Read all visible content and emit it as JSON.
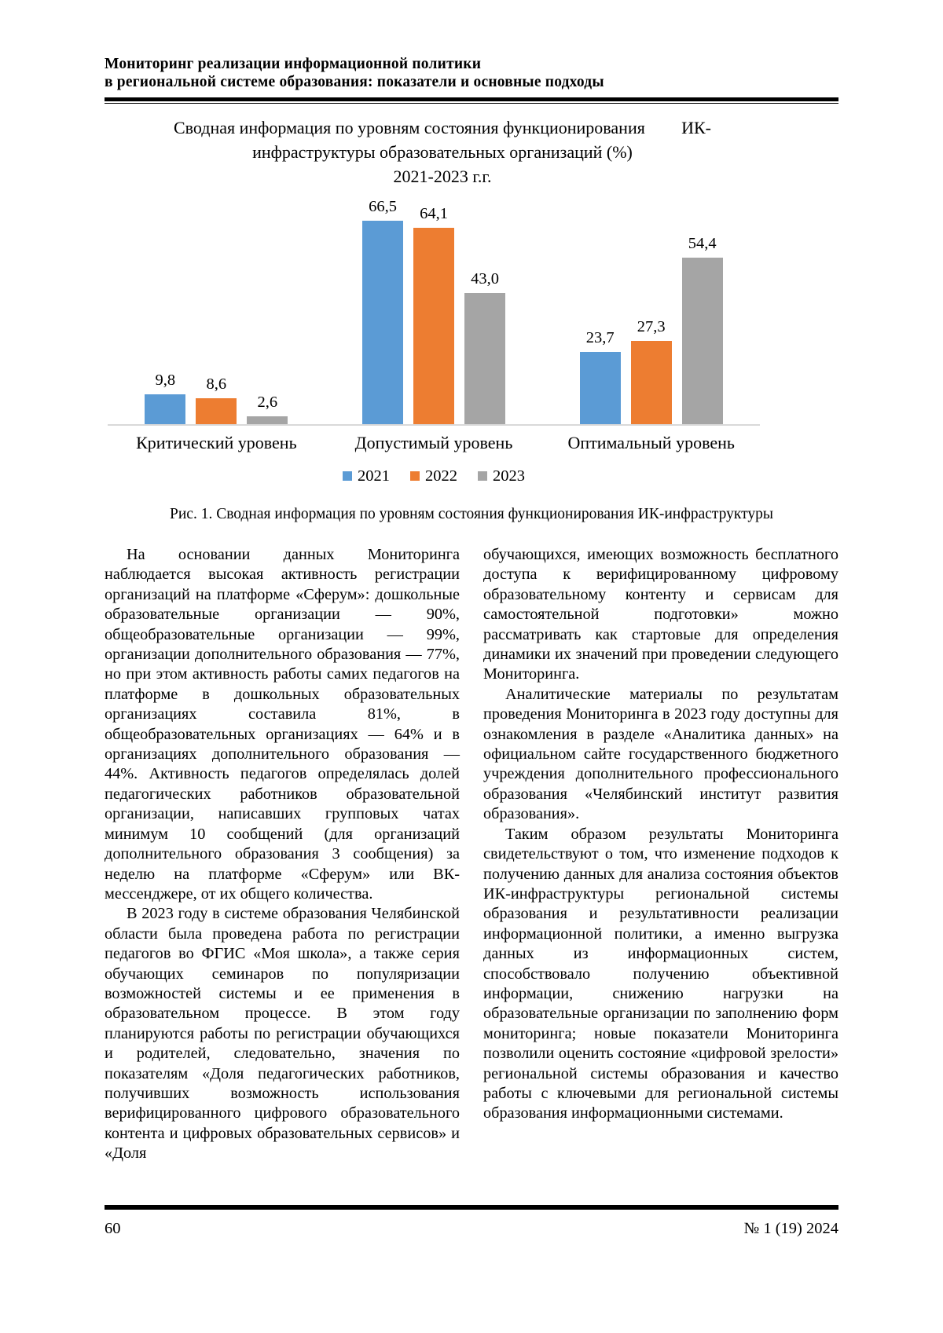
{
  "header": {
    "line1": "Мониторинг реализации информационной политики",
    "line2": "в региональной системе образования: показатели и основные подходы"
  },
  "chart_data": {
    "type": "bar",
    "title_line1_left": "Сводная информация по уровням состояния функционирования",
    "title_line1_right": "ИК-",
    "title_line2": "инфраструктуры образовательных организаций (%)",
    "title_line3": "2021-2023 г.г.",
    "categories": [
      "Критический уровень",
      "Допустимый уровень",
      "Оптимальный уровень"
    ],
    "series": [
      {
        "name": "2021",
        "color": "#5B9BD5",
        "values": [
          9.8,
          66.5,
          23.7
        ]
      },
      {
        "name": "2022",
        "color": "#ED7D31",
        "values": [
          8.6,
          64.1,
          27.3
        ]
      },
      {
        "name": "2023",
        "color": "#A5A5A5",
        "values": [
          2.6,
          43.0,
          54.4
        ]
      }
    ],
    "ylim": [
      0,
      70
    ],
    "grid": false,
    "legend_position": "bottom",
    "axis_color": "#D9D9D9",
    "decimal_separator": ","
  },
  "figure_caption": "Рис. 1. Сводная информация по уровням состояния функционирования ИК-инфраструктуры",
  "article": {
    "left_column": [
      {
        "text": "На основании данных Мониторинга наблюдается высокая активность регистрации организаций на платформе «Сферум»: дошкольные образовательные организации — 90%, общеобразовательные организации — 99%, организации дополнительного образования — 77%, но при этом активность работы самих педагогов на платформе в дошкольных образовательных организациях составила 81%, в общеобразовательных организациях — 64% и в организациях дополнительного образования — 44%. Активность педагогов определялась долей педагогических работников образовательной организации, написавших групповых чатах минимум 10 сообщений (для организаций дополнительного образования 3 сообщения) за неделю на платформе «Сферум» или ВК-мессенджере, от их общего количества."
      },
      {
        "text": "В 2023 году в системе образования Челябинской области была проведена работа по регистрации педагогов во ФГИС «Моя школа», а также серия обучающих семинаров по популяризации возможностей системы и ее применения в образовательном процессе. В этом году планируются работы по регистрации обучающихся и родителей, следовательно, значения по показателям «Доля педагогических работников, получивших возможность использования верифицированного цифрового образовательного контента и цифровых образовательных сервисов» и «Доля"
      }
    ],
    "right_column": [
      {
        "text": "обучающихся, имеющих возможность бесплатного доступа к верифицированному цифровому образовательному контенту и сервисам для самостоятельной подготовки» можно рассматривать как стартовые для определения динамики их значений при проведении следующего Мониторинга."
      },
      {
        "text": "Аналитические материалы по результатам проведения Мониторинга в 2023 году доступны для ознакомления в разделе «Аналитика данных» на официальном сайте государственного бюджетного учреждения дополнительного профессионального образования «Челябинский институт развития образования»."
      },
      {
        "text": "Таким образом результаты Мониторинга свидетельствуют о том, что изменение подходов к получению данных для анализа состояния объектов ИК-инфраструктуры региональной системы образования и результативности реализации информационной политики, а именно выгрузка данных из информационных систем, способствовало получению объективной информации, снижению нагрузки на образовательные организации по заполнению форм мониторинга; новые показатели Мониторинга позволили оценить состояние «цифровой зрелости» региональной системы образования и качество работы с ключевыми для региональной системы образования информационными системами."
      }
    ]
  },
  "footer": {
    "page_number": "60",
    "issue": "№ 1 (19) 2024"
  }
}
